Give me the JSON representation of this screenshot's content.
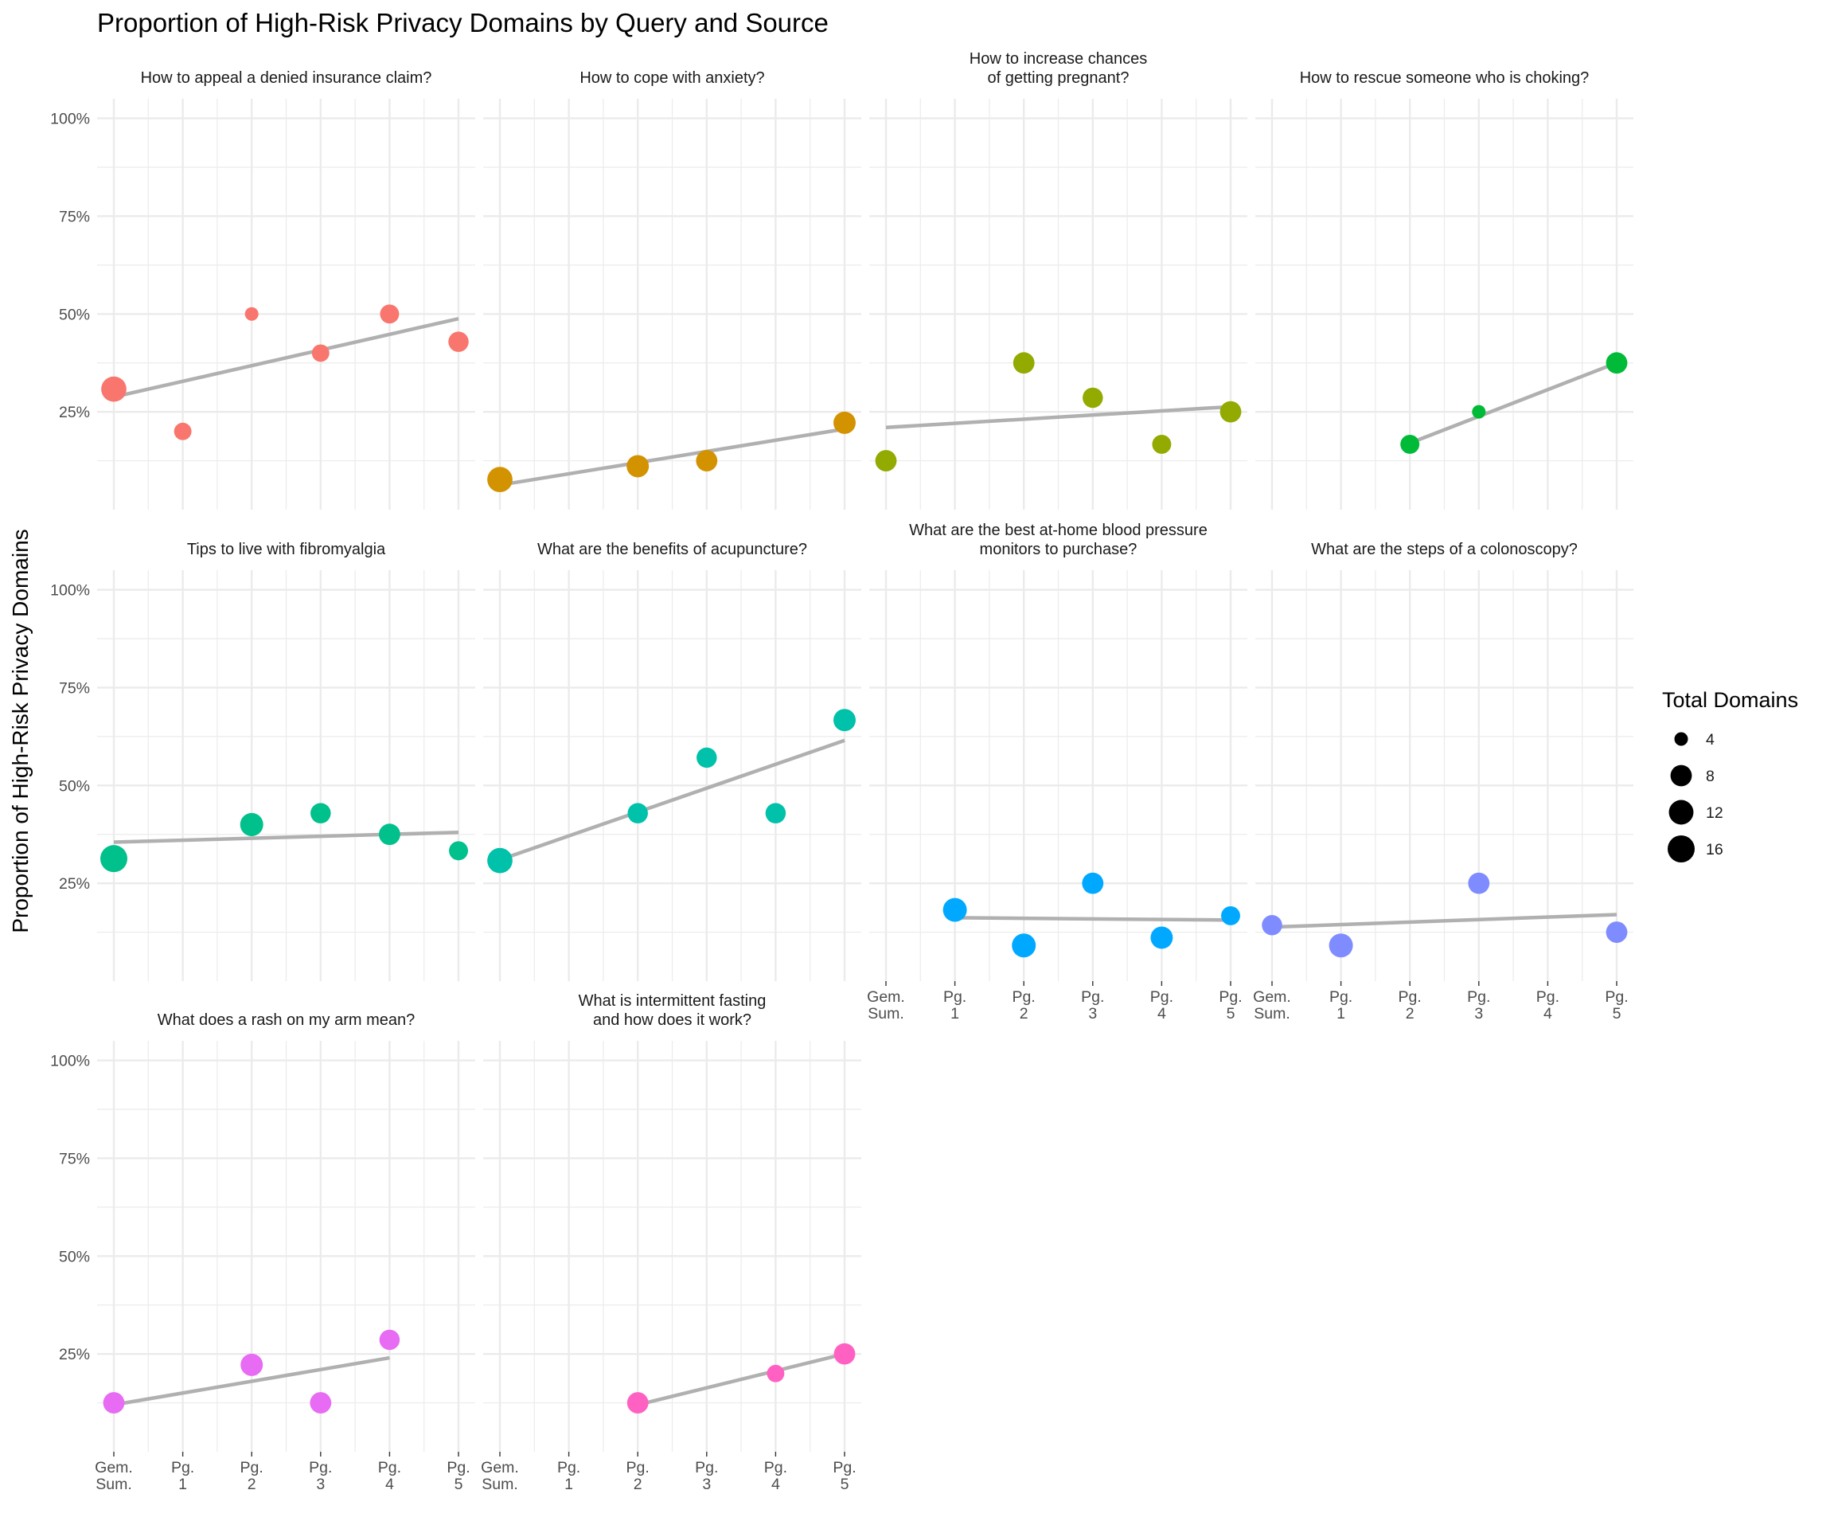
{
  "chart_data": {
    "type": "scatter",
    "title": "Proportion of High-Risk Privacy Domains by Query and Source",
    "ylabel": "Proportion of High-Risk Privacy Domains",
    "xlabel": "",
    "x_categories": [
      "Gem.\nSum.",
      "Pg.\n1",
      "Pg.\n2",
      "Pg.\n3",
      "Pg.\n4",
      "Pg.\n5"
    ],
    "y_ticks": [
      "25%",
      "50%",
      "75%",
      "100%"
    ],
    "y_tick_values": [
      0.25,
      0.5,
      0.75,
      1.0
    ],
    "ylim": [
      0.0,
      1.05
    ],
    "grid": true,
    "trend_line": "linear fit, grey",
    "trend_color": "#b0b0b0",
    "legend": {
      "title": "Total Domains",
      "placement": "right",
      "sizes": [
        4,
        8,
        12,
        16
      ],
      "labels": [
        "4",
        "8",
        "12",
        "16"
      ]
    },
    "panels": [
      {
        "query": "How to appeal a denied insurance claim?",
        "color": "#F8766D",
        "points": [
          {
            "x": 0,
            "y": 0.308,
            "n": 13
          },
          {
            "x": 1,
            "y": 0.2,
            "n": 5
          },
          {
            "x": 2,
            "y": 0.5,
            "n": 4
          },
          {
            "x": 3,
            "y": 0.4,
            "n": 5
          },
          {
            "x": 4,
            "y": 0.5,
            "n": 6
          },
          {
            "x": 5,
            "y": 0.429,
            "n": 7
          }
        ],
        "trend": [
          {
            "x": 0,
            "y": 0.288
          },
          {
            "x": 5,
            "y": 0.488
          }
        ]
      },
      {
        "query": "How to cope with anxiety?",
        "color": "#D39200",
        "points": [
          {
            "x": 0,
            "y": 0.077,
            "n": 13
          },
          {
            "x": 2,
            "y": 0.111,
            "n": 9
          },
          {
            "x": 3,
            "y": 0.125,
            "n": 8
          },
          {
            "x": 5,
            "y": 0.222,
            "n": 9
          }
        ],
        "trend": [
          {
            "x": 0,
            "y": 0.063
          },
          {
            "x": 5,
            "y": 0.206
          }
        ]
      },
      {
        "query": "How to increase chances\nof getting pregnant?",
        "color": "#93AA00",
        "points": [
          {
            "x": 0,
            "y": 0.125,
            "n": 8
          },
          {
            "x": 2,
            "y": 0.375,
            "n": 8
          },
          {
            "x": 3,
            "y": 0.286,
            "n": 7
          },
          {
            "x": 4,
            "y": 0.167,
            "n": 6
          },
          {
            "x": 5,
            "y": 0.25,
            "n": 8
          }
        ],
        "trend": [
          {
            "x": 0,
            "y": 0.21
          },
          {
            "x": 5,
            "y": 0.263
          }
        ]
      },
      {
        "query": "How to rescue someone who is choking?",
        "color": "#00BA38",
        "points": [
          {
            "x": 2,
            "y": 0.167,
            "n": 6
          },
          {
            "x": 3,
            "y": 0.25,
            "n": 4
          },
          {
            "x": 5,
            "y": 0.375,
            "n": 8
          }
        ],
        "trend": [
          {
            "x": 2,
            "y": 0.17
          },
          {
            "x": 5,
            "y": 0.375
          }
        ]
      },
      {
        "query": "Tips to live with fibromyalgia",
        "color": "#00C08B",
        "points": [
          {
            "x": 0,
            "y": 0.313,
            "n": 16
          },
          {
            "x": 2,
            "y": 0.4,
            "n": 10
          },
          {
            "x": 3,
            "y": 0.429,
            "n": 7
          },
          {
            "x": 4,
            "y": 0.375,
            "n": 8
          },
          {
            "x": 5,
            "y": 0.333,
            "n": 6
          }
        ],
        "trend": [
          {
            "x": 0,
            "y": 0.355
          },
          {
            "x": 5,
            "y": 0.38
          }
        ]
      },
      {
        "query": "What are the benefits of acupuncture?",
        "color": "#00C1AA",
        "points": [
          {
            "x": 0,
            "y": 0.308,
            "n": 13
          },
          {
            "x": 2,
            "y": 0.429,
            "n": 7
          },
          {
            "x": 3,
            "y": 0.571,
            "n": 7
          },
          {
            "x": 4,
            "y": 0.429,
            "n": 7
          },
          {
            "x": 5,
            "y": 0.667,
            "n": 9
          }
        ],
        "trend": [
          {
            "x": 0,
            "y": 0.31
          },
          {
            "x": 5,
            "y": 0.615
          }
        ]
      },
      {
        "query": "What are the best at-home blood pressure\nmonitors to purchase?",
        "color": "#00A9FF",
        "points": [
          {
            "x": 1,
            "y": 0.182,
            "n": 11
          },
          {
            "x": 2,
            "y": 0.091,
            "n": 11
          },
          {
            "x": 3,
            "y": 0.25,
            "n": 8
          },
          {
            "x": 4,
            "y": 0.111,
            "n": 9
          },
          {
            "x": 5,
            "y": 0.167,
            "n": 6
          }
        ],
        "trend": [
          {
            "x": 1,
            "y": 0.162
          },
          {
            "x": 5,
            "y": 0.156
          }
        ]
      },
      {
        "query": "What are the steps of a colonoscopy?",
        "color": "#7F8CFF",
        "points": [
          {
            "x": 0,
            "y": 0.143,
            "n": 7
          },
          {
            "x": 1,
            "y": 0.091,
            "n": 11
          },
          {
            "x": 3,
            "y": 0.25,
            "n": 8
          },
          {
            "x": 5,
            "y": 0.125,
            "n": 8
          }
        ],
        "trend": [
          {
            "x": 0,
            "y": 0.138
          },
          {
            "x": 5,
            "y": 0.17
          }
        ]
      },
      {
        "query": "What does a rash on my arm mean?",
        "color": "#E76BF3",
        "points": [
          {
            "x": 0,
            "y": 0.125,
            "n": 8
          },
          {
            "x": 2,
            "y": 0.222,
            "n": 9
          },
          {
            "x": 3,
            "y": 0.125,
            "n": 8
          },
          {
            "x": 4,
            "y": 0.286,
            "n": 7
          }
        ],
        "trend": [
          {
            "x": 0,
            "y": 0.12
          },
          {
            "x": 4,
            "y": 0.24
          }
        ]
      },
      {
        "query": "What is intermittent fasting\nand how does it work?",
        "color": "#FF61C3",
        "points": [
          {
            "x": 2,
            "y": 0.125,
            "n": 8
          },
          {
            "x": 4,
            "y": 0.2,
            "n": 5
          },
          {
            "x": 5,
            "y": 0.25,
            "n": 8
          }
        ],
        "trend": [
          {
            "x": 2,
            "y": 0.12
          },
          {
            "x": 5,
            "y": 0.25
          }
        ]
      }
    ]
  }
}
